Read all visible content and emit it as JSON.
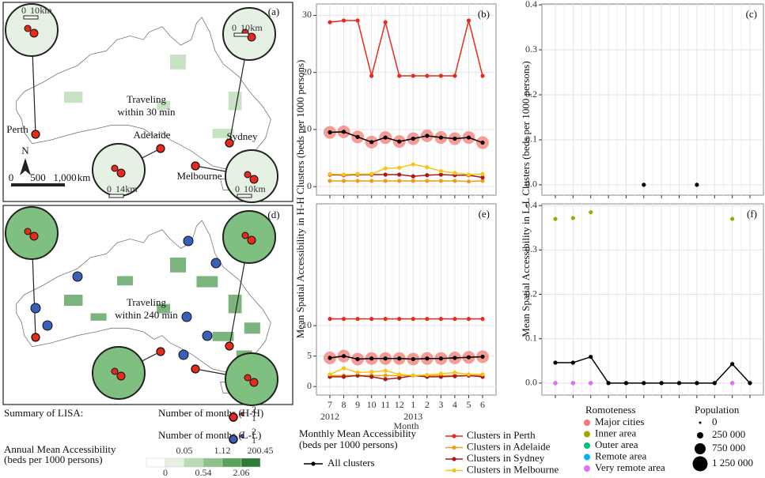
{
  "chart_data": [
    {
      "type": "line",
      "panel": "(b)",
      "ylabel": "Mean Spatial Accessibility in H-H Clusters (beds per 1000 persons)",
      "categories": [
        null,
        null,
        null,
        null,
        null,
        null,
        null,
        null,
        null,
        null,
        null,
        null
      ],
      "ylim": [
        -1.5,
        32
      ],
      "yticks": [
        0,
        10,
        20,
        30
      ],
      "grid": true,
      "series": [
        {
          "name": "Clusters in Perth",
          "color": "#e8291c",
          "values": [
            28.8,
            29.1,
            29.1,
            19.4,
            28.8,
            19.4,
            19.4,
            19.4,
            19.4,
            19.4,
            29.1,
            19.4
          ]
        },
        {
          "name": "Clusters in Adelaide",
          "color": "#f39a1f",
          "values": [
            1.0,
            1.0,
            1.0,
            1.0,
            1.0,
            1.0,
            1.0,
            1.0,
            1.0,
            1.0,
            0.9,
            1.0
          ]
        },
        {
          "name": "Clusters in Sydney",
          "color": "#a8191c",
          "values": [
            2.1,
            2.0,
            2.1,
            2.1,
            2.1,
            2.1,
            1.8,
            2.0,
            2.1,
            2.0,
            2.0,
            1.6
          ]
        },
        {
          "name": "Clusters in Melbourne",
          "color": "#f5c518",
          "values": [
            2.2,
            2.1,
            2.2,
            2.2,
            3.2,
            3.3,
            3.9,
            3.4,
            2.7,
            2.4,
            2.1,
            2.2
          ]
        },
        {
          "name": "All clusters",
          "color": "#000000",
          "bubble_color": "#f4827a",
          "values": [
            9.5,
            9.6,
            8.7,
            7.8,
            8.6,
            7.9,
            8.4,
            8.9,
            8.6,
            8.4,
            8.6,
            7.7
          ]
        }
      ]
    },
    {
      "type": "line",
      "panel": "(c)",
      "ylabel": "Mean Spatial Accessibility in L-L Clusters (beds per 1000 persons)",
      "categories": [
        null,
        null,
        null,
        null,
        null,
        null,
        null,
        null,
        null,
        null,
        null,
        null
      ],
      "ylim": [
        -0.023,
        0.402
      ],
      "yticks": [
        {
          "value": 0,
          "label": "0.0"
        },
        0.1,
        0.2,
        0.3,
        0.4
      ],
      "grid": true,
      "series": [
        {
          "name": "All clusters",
          "color": "#000000",
          "values": [
            null,
            null,
            null,
            null,
            null,
            0,
            null,
            null,
            0,
            null,
            null,
            null
          ]
        }
      ]
    },
    {
      "type": "line",
      "panel": "(e)",
      "xlabel": "Month",
      "categories": [
        "7",
        "8",
        "9",
        "10",
        "11",
        "12",
        "1",
        "2",
        "3",
        "4",
        "5",
        "6"
      ],
      "year_labels": [
        "2012",
        null,
        null,
        null,
        null,
        null,
        "2013",
        null,
        null,
        null,
        null,
        null
      ],
      "ylim": [
        -1.4,
        30
      ],
      "yticks": [
        0,
        5,
        10
      ],
      "grid": true,
      "series": [
        {
          "name": "Clusters in Perth",
          "color": "#e8291c",
          "values": [
            11.1,
            11.1,
            11.1,
            11.1,
            11.1,
            11.1,
            11.1,
            11.1,
            11.1,
            11.1,
            11.1,
            11.1
          ]
        },
        {
          "name": "Clusters in Adelaide",
          "color": "#f39a1f",
          "values": [
            1.8,
            1.8,
            1.8,
            1.8,
            1.8,
            1.8,
            1.8,
            1.8,
            1.8,
            1.8,
            1.8,
            1.8
          ]
        },
        {
          "name": "Clusters in Sydney",
          "color": "#a8191c",
          "values": [
            1.6,
            1.6,
            1.8,
            1.6,
            1.2,
            1.4,
            1.8,
            1.6,
            1.6,
            1.7,
            1.8,
            1.6
          ]
        },
        {
          "name": "Clusters in Melbourne",
          "color": "#f5c518",
          "values": [
            2.0,
            3.0,
            2.3,
            2.4,
            2.6,
            2.0,
            1.8,
            1.9,
            2.1,
            2.3,
            2.0,
            2.0
          ]
        },
        {
          "name": "All clusters",
          "color": "#000000",
          "bubble_color": "#f4827a",
          "values": [
            4.7,
            5.0,
            4.5,
            4.6,
            4.6,
            4.6,
            4.5,
            4.6,
            4.6,
            4.7,
            4.8,
            4.9
          ]
        }
      ]
    },
    {
      "type": "line",
      "panel": "(f)",
      "legend_title": "Romoteness",
      "categories": [
        null,
        null,
        null,
        null,
        null,
        null,
        null,
        null,
        null,
        null,
        null,
        null
      ],
      "ylim": [
        -0.027,
        0.404
      ],
      "yticks": [
        {
          "value": 0,
          "label": "0.0"
        },
        0.1,
        0.2,
        0.3,
        0.4
      ],
      "grid": true,
      "series": [
        {
          "name": "Major cities",
          "color": "#f8766d",
          "mode": "points",
          "values": [
            0,
            0,
            0,
            0,
            0,
            0,
            0,
            0,
            0,
            0,
            0,
            0
          ]
        },
        {
          "name": "Inner area",
          "color": "#a3a500",
          "mode": "points",
          "values": [
            0.37,
            0.372,
            0.385,
            0,
            0,
            0,
            0,
            0,
            0,
            0,
            0.37,
            0
          ]
        },
        {
          "name": "Outer area",
          "color": "#00bf7d",
          "mode": "points",
          "values": [
            0,
            0,
            0,
            0,
            0,
            0,
            0,
            0,
            0,
            0,
            0,
            0
          ]
        },
        {
          "name": "Remote area",
          "color": "#00b0f6",
          "mode": "points",
          "values": [
            0,
            0,
            0,
            0,
            0,
            0,
            0,
            0,
            0,
            0,
            0,
            0
          ]
        },
        {
          "name": "Very remote area",
          "color": "#e76bf3",
          "mode": "points",
          "values": [
            0,
            0,
            0,
            0,
            0,
            0,
            0,
            0,
            0,
            0,
            0,
            0
          ]
        },
        {
          "name": "All clusters",
          "color": "#000000",
          "values": [
            0.046,
            0.046,
            0.059,
            0,
            0,
            0,
            0,
            0,
            0,
            0,
            0.043,
            0
          ]
        }
      ]
    }
  ],
  "maps": [
    {
      "panel": "(a)",
      "title": [
        "Traveling",
        "within 30 min"
      ],
      "cities": [
        "Perth",
        "Adelaide",
        "Sydney",
        "Melbourne"
      ],
      "north": "N",
      "scale": [
        "0",
        "500",
        "1,000",
        "km"
      ],
      "inset_scales": [
        [
          "0",
          "10",
          "km"
        ],
        [
          "0",
          "14",
          "km"
        ],
        [
          "0",
          "10",
          "km"
        ],
        [
          "0",
          "10",
          "km"
        ]
      ]
    },
    {
      "panel": "(d)",
      "title": [
        "Traveling",
        "within 240 min"
      ]
    }
  ],
  "legend": {
    "title": [
      "Monthly Mean Accessibility",
      "(beds per 1000 persons)"
    ],
    "population": {
      "title": "Population",
      "labels": [
        "0",
        "250 000",
        "750 000",
        "1 250 000"
      ]
    },
    "lisa": {
      "title": "Summary of LISA:",
      "hh": "Number of months (H-H)",
      "ll": "Number of months (L-L)",
      "counts": [
        "1",
        "2"
      ],
      "accessibility": [
        "Annual Mean Accessibility",
        "(beds per 1000 persons)"
      ],
      "breaks_top": [
        "0.05",
        "1.12",
        "200.45"
      ],
      "breaks_bottom": [
        "0",
        "0.54",
        "2.06"
      ],
      "colors": [
        "#ffffff",
        "#e5f2e3",
        "#b9dcb4",
        "#8cc38a",
        "#5aa25c",
        "#2e7a37"
      ]
    }
  }
}
